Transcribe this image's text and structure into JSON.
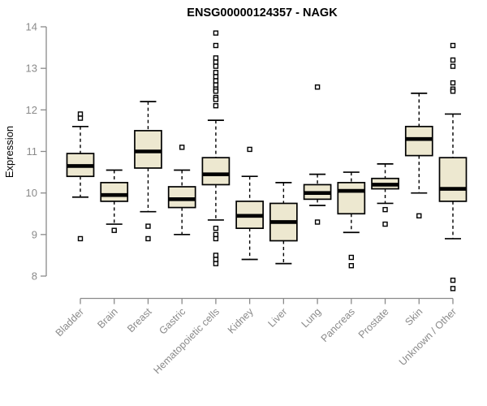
{
  "chart_data": {
    "type": "boxplot",
    "title": "ENSG00000124357 - NAGK",
    "xlabel": "",
    "ylabel": "Expression",
    "ylim": [
      8,
      14
    ],
    "yticks": [
      8,
      9,
      10,
      11,
      12,
      13,
      14
    ],
    "grid": false,
    "legend": null,
    "categories": [
      "Bladder",
      "Brain",
      "Breast",
      "Gastric",
      "Hematopoietic cells",
      "Kidney",
      "Liver",
      "Lung",
      "Pancreas",
      "Prostate",
      "Skin",
      "Unknown / Other"
    ],
    "series": [
      {
        "category": "Bladder",
        "low": 9.9,
        "q1": 10.4,
        "median": 10.65,
        "q3": 10.95,
        "high": 11.6,
        "outliers": [
          11.9,
          11.8,
          8.9
        ]
      },
      {
        "category": "Brain",
        "low": 9.25,
        "q1": 9.8,
        "median": 9.95,
        "q3": 10.25,
        "high": 10.55,
        "outliers": [
          9.1
        ]
      },
      {
        "category": "Breast",
        "low": 9.55,
        "q1": 10.6,
        "median": 11.0,
        "q3": 11.5,
        "high": 12.2,
        "outliers": [
          9.2,
          8.9
        ]
      },
      {
        "category": "Gastric",
        "low": 9.0,
        "q1": 9.65,
        "median": 9.85,
        "q3": 10.15,
        "high": 10.55,
        "outliers": [
          11.1
        ]
      },
      {
        "category": "Hematopoietic cells",
        "low": 9.35,
        "q1": 10.2,
        "median": 10.45,
        "q3": 10.85,
        "high": 11.75,
        "outliers": [
          13.85,
          13.55,
          13.25,
          13.15,
          13.05,
          12.9,
          12.8,
          12.7,
          12.6,
          12.5,
          12.45,
          12.3,
          12.25,
          12.1,
          9.15,
          9.0,
          8.9,
          8.5,
          8.4,
          8.3
        ]
      },
      {
        "category": "Kidney",
        "low": 8.4,
        "q1": 9.15,
        "median": 9.45,
        "q3": 9.8,
        "high": 10.4,
        "outliers": [
          11.05
        ]
      },
      {
        "category": "Liver",
        "low": 8.3,
        "q1": 8.85,
        "median": 9.3,
        "q3": 9.75,
        "high": 10.25,
        "outliers": []
      },
      {
        "category": "Lung",
        "low": 9.7,
        "q1": 9.85,
        "median": 10.0,
        "q3": 10.2,
        "high": 10.45,
        "outliers": [
          12.55,
          9.3
        ]
      },
      {
        "category": "Pancreas",
        "low": 9.05,
        "q1": 9.5,
        "median": 10.05,
        "q3": 10.25,
        "high": 10.5,
        "outliers": [
          8.45,
          8.25
        ]
      },
      {
        "category": "Prostate",
        "low": 9.75,
        "q1": 10.1,
        "median": 10.2,
        "q3": 10.35,
        "high": 10.7,
        "outliers": [
          9.6,
          9.25
        ]
      },
      {
        "category": "Skin",
        "low": 10.0,
        "q1": 10.9,
        "median": 11.3,
        "q3": 11.6,
        "high": 12.4,
        "outliers": [
          9.45
        ]
      },
      {
        "category": "Unknown / Other",
        "low": 8.9,
        "q1": 9.8,
        "median": 10.1,
        "q3": 10.85,
        "high": 11.9,
        "outliers": [
          13.55,
          13.2,
          13.05,
          12.65,
          12.5,
          12.45,
          7.9,
          7.7
        ]
      }
    ],
    "colors": {
      "box_fill": "#ede8d0",
      "box_border": "#000000",
      "median": "#000000",
      "whisker": "#000000",
      "outlier_fill": "#ffffff",
      "axis": "#8a8a8a",
      "axis_text": "#8a8a8a",
      "title": "#000000"
    }
  }
}
